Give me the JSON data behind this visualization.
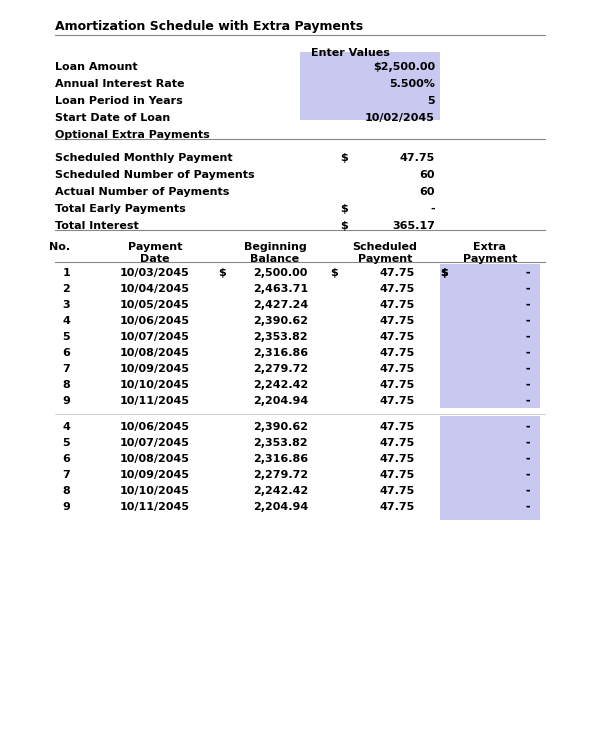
{
  "title": "Amortization Schedule with Extra Payments",
  "bg_color": "#ffffff",
  "highlight_color": "#c8c8f0",
  "section1_labels": [
    "Loan Amount",
    "Annual Interest Rate",
    "Loan Period in Years",
    "Start Date of Loan",
    "Optional Extra Payments"
  ],
  "section1_header": "Enter Values",
  "section1_values": [
    "$2,500.00",
    "5.500%",
    "5",
    "10/02/2045",
    ""
  ],
  "section2_rows": [
    [
      "Scheduled Monthly Payment",
      "$",
      "47.75"
    ],
    [
      "Scheduled Number of Payments",
      "",
      "60"
    ],
    [
      "Actual Number of Payments",
      "",
      "60"
    ],
    [
      "Total Early Payments",
      "$",
      "-"
    ],
    [
      "Total Interest",
      "$",
      "365.17"
    ]
  ],
  "table_headers": [
    "No.",
    "Payment\nDate",
    "Beginning\nBalance",
    "Scheduled\nPayment",
    "Extra\nPayment"
  ],
  "table_data": [
    [
      "1",
      "10/03/2045",
      "$",
      "2,500.00",
      "$",
      "47.75",
      "$",
      "-"
    ],
    [
      "2",
      "10/04/2045",
      "",
      "2,463.71",
      "",
      "47.75",
      "",
      "-"
    ],
    [
      "3",
      "10/05/2045",
      "",
      "2,427.24",
      "",
      "47.75",
      "",
      "-"
    ],
    [
      "4",
      "10/06/2045",
      "",
      "2,390.62",
      "",
      "47.75",
      "",
      "-"
    ],
    [
      "5",
      "10/07/2045",
      "",
      "2,353.82",
      "",
      "47.75",
      "",
      "-"
    ],
    [
      "6",
      "10/08/2045",
      "",
      "2,316.86",
      "",
      "47.75",
      "",
      "-"
    ],
    [
      "7",
      "10/09/2045",
      "",
      "2,279.72",
      "",
      "47.75",
      "",
      "-"
    ],
    [
      "8",
      "10/10/2045",
      "",
      "2,242.42",
      "",
      "47.75",
      "",
      "-"
    ],
    [
      "9",
      "10/11/2045",
      "",
      "2,204.94",
      "",
      "47.75",
      "",
      "-"
    ]
  ],
  "table_data2": [
    [
      "4",
      "10/06/2045",
      "",
      "2,390.62",
      "",
      "47.75",
      "",
      "-"
    ],
    [
      "5",
      "10/07/2045",
      "",
      "2,353.82",
      "",
      "47.75",
      "",
      "-"
    ],
    [
      "6",
      "10/08/2045",
      "",
      "2,316.86",
      "",
      "47.75",
      "",
      "-"
    ],
    [
      "7",
      "10/09/2045",
      "",
      "2,279.72",
      "",
      "47.75",
      "",
      "-"
    ],
    [
      "8",
      "10/10/2045",
      "",
      "2,242.42",
      "",
      "47.75",
      "",
      "-"
    ],
    [
      "9",
      "10/11/2045",
      "",
      "2,204.94",
      "",
      "47.75",
      "",
      "-"
    ]
  ],
  "font_family": "DejaVu Sans",
  "title_fontsize": 9,
  "body_fontsize": 8
}
